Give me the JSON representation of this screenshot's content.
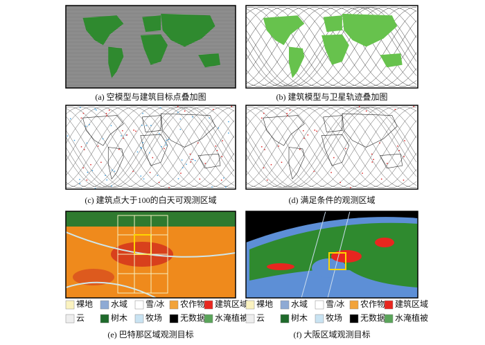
{
  "panels": [
    {
      "caption": "(a) 空模型与建筑目标点叠加图"
    },
    {
      "caption": "(b) 建筑模型与卫星轨迹叠加图"
    },
    {
      "caption": "(c) 建筑点大于100的白天可观测区域"
    },
    {
      "caption": "(d) 满足条件的观测区域"
    },
    {
      "caption": "(e) 巴特那区域观测目标"
    },
    {
      "caption": "(f) 大阪区域观测目标"
    }
  ],
  "legend": [
    {
      "label": "裸地",
      "color": "#fbf3c0"
    },
    {
      "label": "水域",
      "color": "#8eaad4"
    },
    {
      "label": "雪/冰",
      "color": "#ffffff"
    },
    {
      "label": "农作物",
      "color": "#f2a33a"
    },
    {
      "label": "建筑区域",
      "color": "#e8261f"
    },
    {
      "label": "云",
      "color": "#eeeeee"
    },
    {
      "label": "树木",
      "color": "#1f6a2b"
    },
    {
      "label": "牧场",
      "color": "#c9e3f2"
    },
    {
      "label": "无数据",
      "color": "#000000"
    },
    {
      "label": "水淹植被",
      "color": "#5aa55a"
    }
  ]
}
